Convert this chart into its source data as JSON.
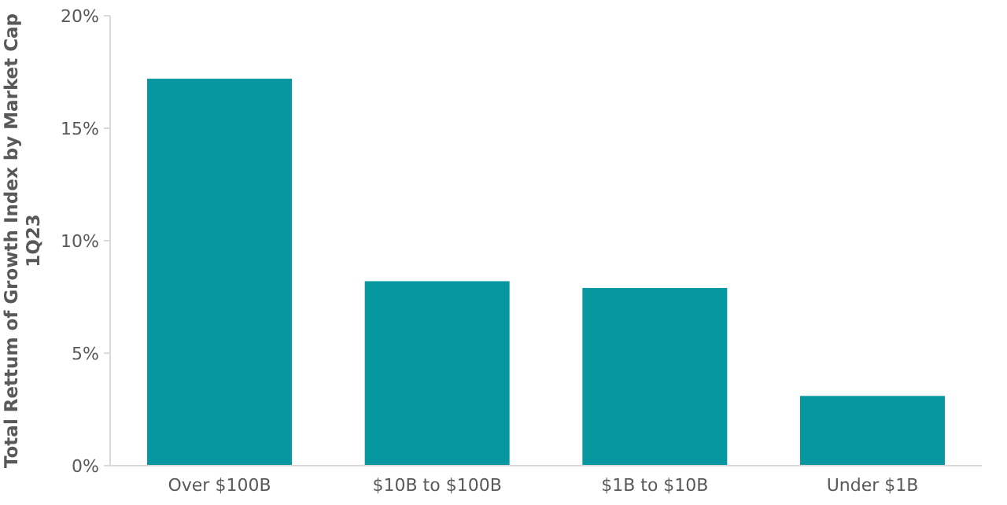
{
  "chart_data": {
    "type": "bar",
    "ylabel": "Total Rettum of Growth Index by Market Cap 1Q23",
    "categories": [
      "Over $100B",
      "$10B to $100B",
      "$1B to $10B",
      "Under $1B"
    ],
    "values": [
      17.2,
      8.2,
      7.9,
      3.1
    ],
    "color": "#0797a1",
    "ylim": [
      0,
      20
    ],
    "yticks": [
      {
        "value": 0,
        "label": "0%"
      },
      {
        "value": 5,
        "label": "5%"
      },
      {
        "value": 10,
        "label": "10%"
      },
      {
        "value": 15,
        "label": "15%"
      },
      {
        "value": 20,
        "label": "20%"
      }
    ],
    "grid": false
  }
}
